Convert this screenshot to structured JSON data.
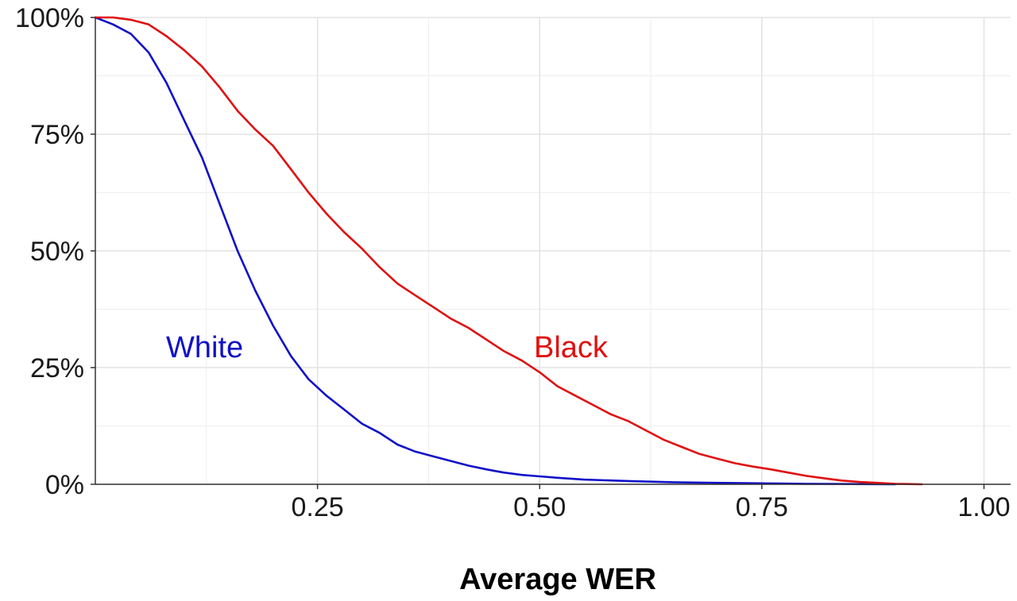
{
  "chart_data": {
    "type": "line",
    "title": "",
    "xlabel": "Average WER",
    "ylabel": "",
    "xlim": [
      0,
      1.03
    ],
    "ylim": [
      0,
      100
    ],
    "grid": true,
    "x_ticks": [
      0.25,
      0.5,
      0.75,
      1.0
    ],
    "x_tick_labels": [
      "0.25",
      "0.50",
      "0.75",
      "1.00"
    ],
    "y_ticks": [
      0,
      25,
      50,
      75,
      100
    ],
    "y_tick_labels": [
      "0%",
      "25%",
      "50%",
      "75%",
      "100%"
    ],
    "series": [
      {
        "name": "White",
        "label": "White",
        "color": "#1010c8",
        "x": [
          0,
          0.02,
          0.04,
          0.06,
          0.08,
          0.1,
          0.12,
          0.14,
          0.16,
          0.18,
          0.2,
          0.22,
          0.24,
          0.26,
          0.28,
          0.3,
          0.32,
          0.34,
          0.36,
          0.38,
          0.4,
          0.42,
          0.44,
          0.46,
          0.48,
          0.5,
          0.52,
          0.55,
          0.6,
          0.65,
          0.7,
          0.75,
          0.8,
          0.85,
          0.9
        ],
        "y": [
          100,
          98.5,
          96.5,
          92.5,
          86,
          78,
          70,
          60,
          50,
          41.5,
          34,
          27.5,
          22.5,
          19,
          16,
          13,
          11,
          8.5,
          7,
          6,
          5,
          4,
          3.2,
          2.5,
          2,
          1.7,
          1.4,
          1.0,
          0.7,
          0.45,
          0.3,
          0.2,
          0.1,
          0.05,
          0
        ]
      },
      {
        "name": "Black",
        "label": "Black",
        "color": "#e01010",
        "x": [
          0,
          0.02,
          0.04,
          0.06,
          0.08,
          0.1,
          0.12,
          0.14,
          0.16,
          0.18,
          0.2,
          0.22,
          0.24,
          0.26,
          0.28,
          0.3,
          0.32,
          0.34,
          0.36,
          0.38,
          0.4,
          0.42,
          0.44,
          0.46,
          0.48,
          0.5,
          0.52,
          0.54,
          0.56,
          0.58,
          0.6,
          0.62,
          0.64,
          0.66,
          0.68,
          0.7,
          0.72,
          0.74,
          0.76,
          0.78,
          0.8,
          0.82,
          0.84,
          0.86,
          0.88,
          0.9,
          0.93
        ],
        "y": [
          100,
          100,
          99.5,
          98.5,
          96,
          93,
          89.5,
          85,
          80,
          76,
          72.5,
          67.5,
          62.5,
          58,
          54,
          50.5,
          46.5,
          43,
          40.5,
          38,
          35.5,
          33.5,
          31,
          28.5,
          26.5,
          24,
          21,
          19,
          17,
          15,
          13.5,
          11.5,
          9.5,
          8,
          6.5,
          5.5,
          4.5,
          3.8,
          3.2,
          2.5,
          1.8,
          1.3,
          0.8,
          0.5,
          0.3,
          0.1,
          0
        ]
      }
    ]
  }
}
